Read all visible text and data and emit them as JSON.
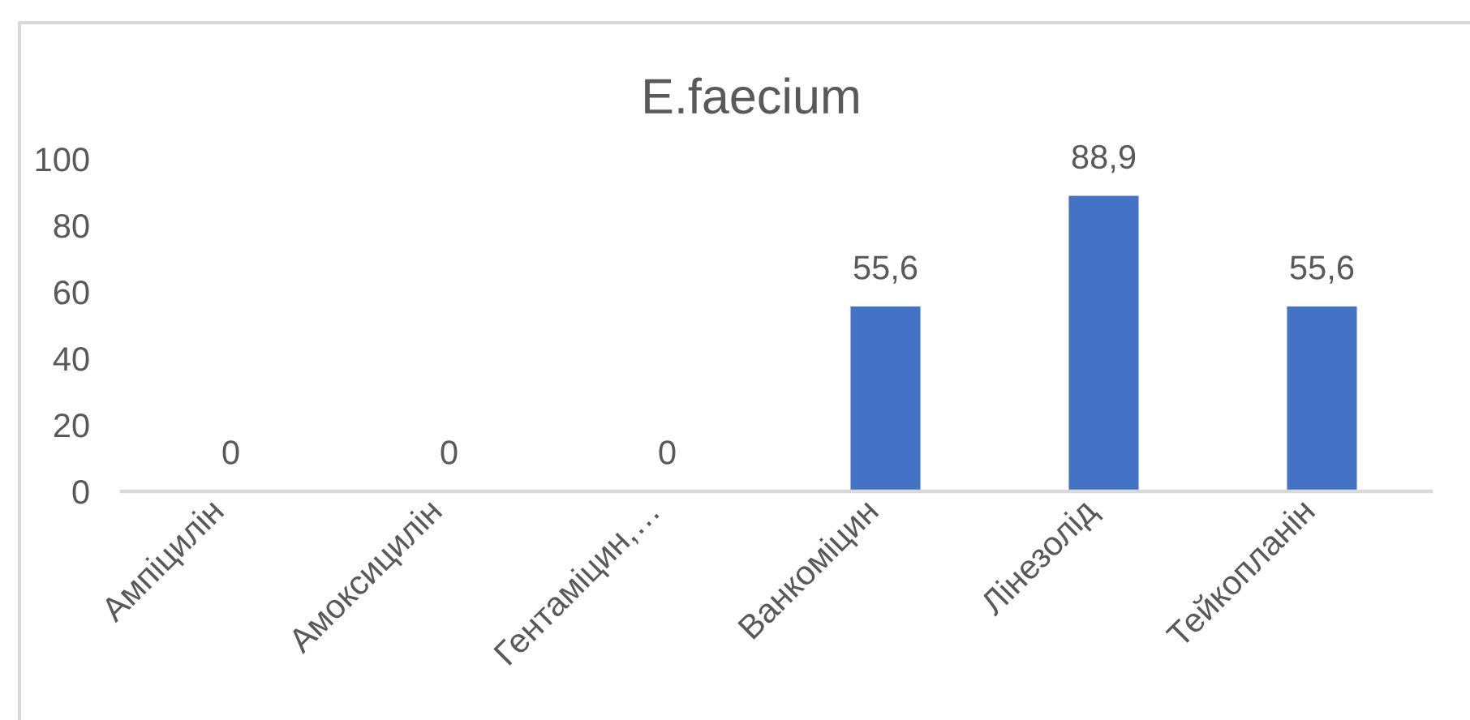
{
  "chart_data": {
    "type": "bar",
    "title": "E.faecium",
    "categories": [
      "Ампіцилін",
      "Амоксицилін",
      "Гентаміцин,…",
      "Ванкоміцин",
      "Лінезолід",
      "Тейкопланін"
    ],
    "values": [
      0,
      0,
      0,
      55.6,
      88.9,
      55.6
    ],
    "value_labels": [
      "0",
      "0",
      "0",
      "55,6",
      "88,9",
      "55,6"
    ],
    "color": "#4472c4",
    "ylim": [
      0,
      100
    ],
    "yticks": [
      0,
      20,
      40,
      60,
      80,
      100
    ]
  }
}
